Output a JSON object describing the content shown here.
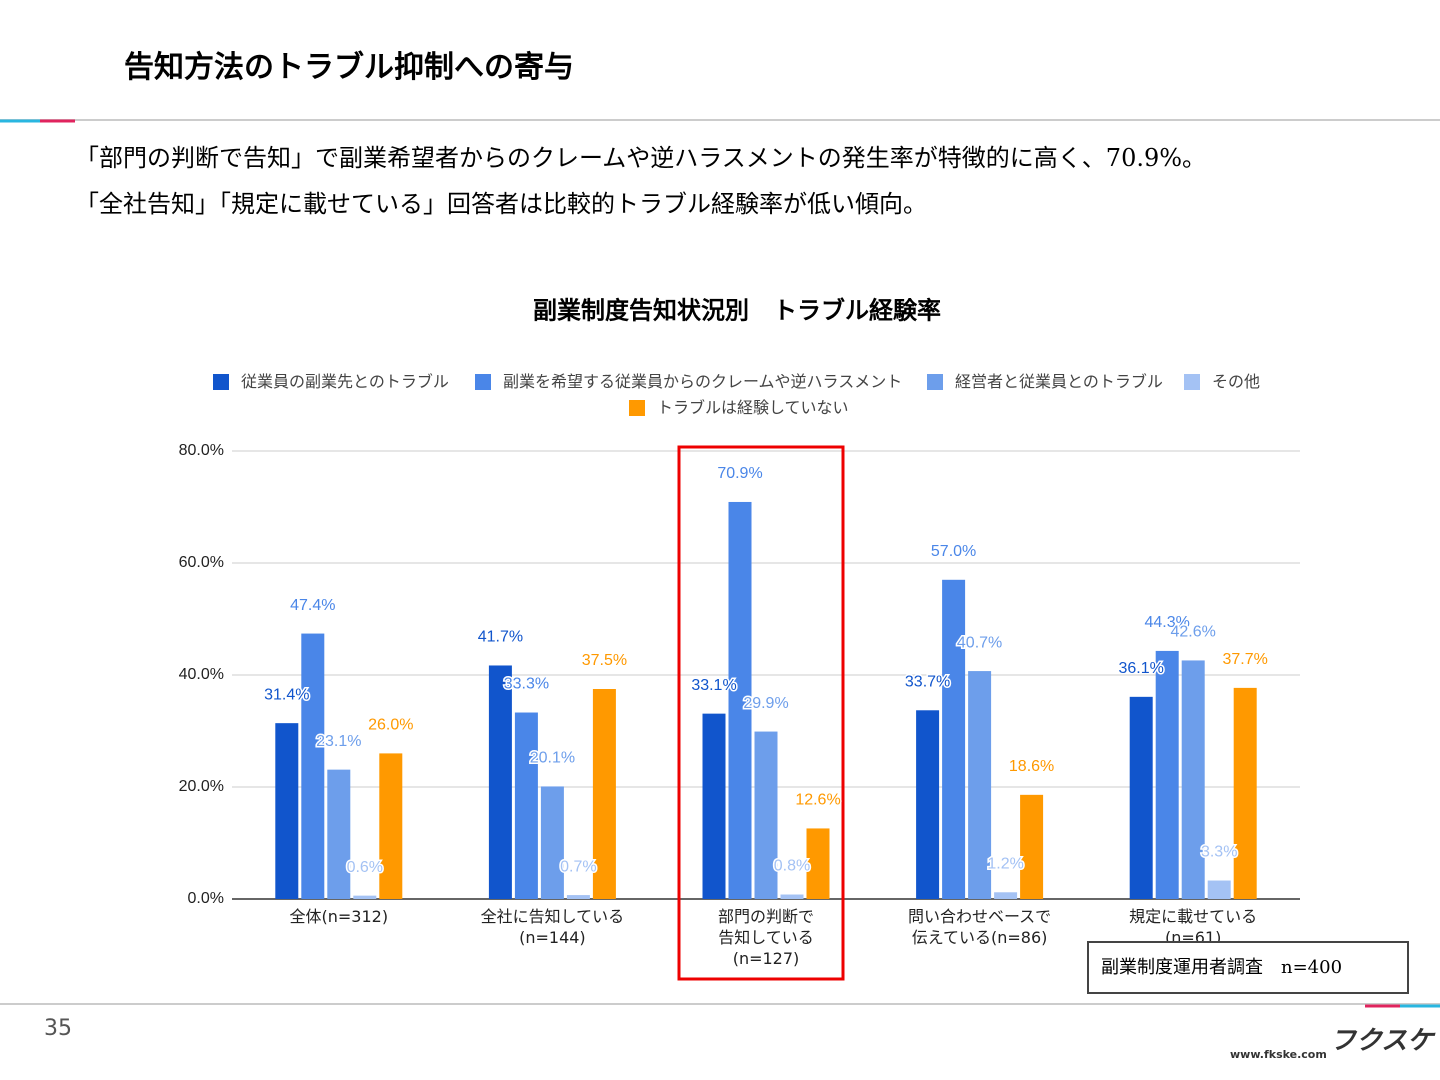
{
  "header": {
    "title": "告知方法のトラブル抑制への寄与"
  },
  "description": [
    "「部門の判断で告知」で副業希望者からのクレームや逆ハラスメントの発生率が特徴的に高く、70.9%。",
    "「全社告知」「規定に載せている」回答者は比較的トラブル経験率が低い傾向。"
  ],
  "chart_data": {
    "type": "bar",
    "title": "副業制度告知状況別　トラブル経験率",
    "categories": [
      "全体(n=312)",
      "全社に告知している\n(n=144)",
      "部門の判断で\n告知している\n(n=127)",
      "問い合わせベースで\n伝えている(n=86)",
      "規定に載せている\n(n=61)"
    ],
    "series": [
      {
        "name": "従業員の副業先とのトラブル",
        "color": "#1155cc",
        "values": [
          31.4,
          41.7,
          33.1,
          33.7,
          36.1
        ],
        "value_labels": [
          "31.4%",
          "41.7%",
          "33.1%",
          "33.7%",
          "36.1%"
        ]
      },
      {
        "name": "副業を希望する従業員からのクレームや逆ハラスメント",
        "color": "#4a86e8",
        "values": [
          47.4,
          33.3,
          70.9,
          57.0,
          44.3
        ],
        "value_labels": [
          "47.4%",
          "33.3%",
          "70.9%",
          "57.0%",
          "44.3%"
        ]
      },
      {
        "name": "経営者と従業員とのトラブル",
        "color": "#6d9eeb",
        "values": [
          23.1,
          20.1,
          29.9,
          40.7,
          42.6
        ],
        "value_labels": [
          "23.1%",
          "20.1%",
          "29.9%",
          "40.7%",
          "42.6%"
        ]
      },
      {
        "name": "その他",
        "color": "#a4c2f4",
        "values": [
          0.6,
          0.7,
          0.8,
          1.2,
          3.3
        ],
        "value_labels": [
          "0.6%",
          "0.7%",
          "0.8%",
          "1.2%",
          "3.3%"
        ]
      },
      {
        "name": "トラブルは経験していない",
        "color": "#ff9900",
        "values": [
          26.0,
          37.5,
          12.6,
          18.6,
          37.7
        ],
        "value_labels": [
          "26.0%",
          "37.5%",
          "12.6%",
          "18.6%",
          "37.7%"
        ]
      }
    ],
    "ylim": [
      0,
      80
    ],
    "yticks": [
      {
        "value": 0,
        "label": "0.0%"
      },
      {
        "value": 20,
        "label": "20.0%"
      },
      {
        "value": 40,
        "label": "40.0%"
      },
      {
        "value": 60,
        "label": "60.0%"
      },
      {
        "value": 80,
        "label": "80.0%"
      }
    ],
    "grid": true,
    "legend": "top"
  },
  "note": "副業制度運用者調査　n=400",
  "page_number": "35",
  "footer": {
    "logo": "フクスケ",
    "url": "www.fkske.com"
  }
}
